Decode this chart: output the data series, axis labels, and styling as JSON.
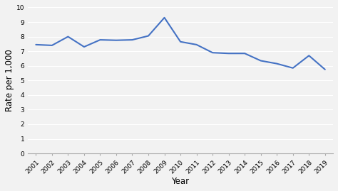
{
  "years": [
    2001,
    2002,
    2003,
    2004,
    2005,
    2006,
    2007,
    2008,
    2009,
    2010,
    2011,
    2012,
    2013,
    2014,
    2015,
    2016,
    2017,
    2018,
    2019
  ],
  "values": [
    7.45,
    7.4,
    8.0,
    7.3,
    7.78,
    7.75,
    7.78,
    8.05,
    9.3,
    7.65,
    7.45,
    6.9,
    6.85,
    6.85,
    6.35,
    6.15,
    5.85,
    6.7,
    5.75
  ],
  "line_color": "#4472C4",
  "line_width": 1.5,
  "ylabel": "Rate per 1,000",
  "xlabel": "Year",
  "ylim": [
    0,
    10
  ],
  "yticks": [
    0,
    1,
    2,
    3,
    4,
    5,
    6,
    7,
    8,
    9,
    10
  ],
  "background_color": "#f2f2f2",
  "grid_color": "#ffffff",
  "tick_label_fontsize": 6.5,
  "axis_label_fontsize": 8.5
}
